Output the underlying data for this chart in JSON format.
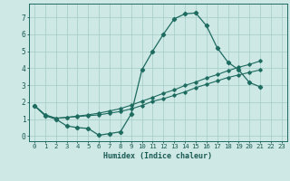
{
  "xlabel": "Humidex (Indice chaleur)",
  "bg_color": "#cde8e5",
  "line_color": "#1e6b60",
  "grid_color": "#aacfcb",
  "xlim": [
    -0.5,
    23.5
  ],
  "ylim": [
    -0.3,
    7.8
  ],
  "xticks": [
    0,
    1,
    2,
    3,
    4,
    5,
    6,
    7,
    8,
    9,
    10,
    11,
    12,
    13,
    14,
    15,
    16,
    17,
    18,
    19,
    20,
    21,
    22,
    23
  ],
  "yticks": [
    0,
    1,
    2,
    3,
    4,
    5,
    6,
    7
  ],
  "line1_x": [
    0,
    1,
    2,
    3,
    4,
    5,
    6,
    7,
    8,
    9,
    10,
    11,
    12,
    13,
    14,
    15,
    16,
    17,
    18,
    19,
    20,
    21
  ],
  "line1_y": [
    1.8,
    1.2,
    1.0,
    0.6,
    0.5,
    0.45,
    0.05,
    0.15,
    0.25,
    1.3,
    3.9,
    5.0,
    6.0,
    6.9,
    7.2,
    7.25,
    6.5,
    5.2,
    4.35,
    3.9,
    3.15,
    2.9
  ],
  "line2_x": [
    0,
    1,
    2,
    3,
    4,
    5,
    6,
    7,
    8,
    9,
    10,
    11,
    12,
    13,
    14,
    15,
    16,
    17,
    18,
    19,
    20,
    21
  ],
  "line2_y": [
    1.8,
    1.25,
    1.05,
    1.1,
    1.15,
    1.2,
    1.25,
    1.35,
    1.45,
    1.6,
    1.8,
    2.05,
    2.2,
    2.4,
    2.6,
    2.85,
    3.05,
    3.25,
    3.45,
    3.6,
    3.75,
    3.9
  ],
  "line3_x": [
    0,
    1,
    2,
    3,
    4,
    5,
    6,
    7,
    8,
    9,
    10,
    11,
    12,
    13,
    14,
    15,
    16,
    17,
    18,
    19,
    20,
    21
  ],
  "line3_y": [
    1.8,
    1.25,
    1.05,
    1.1,
    1.18,
    1.25,
    1.35,
    1.48,
    1.62,
    1.82,
    2.05,
    2.28,
    2.52,
    2.72,
    2.98,
    3.18,
    3.42,
    3.62,
    3.85,
    4.05,
    4.22,
    4.42
  ],
  "xlabel_fontsize": 6.0,
  "tick_fontsize": 5.2,
  "tick_color": "#1a5a52",
  "spine_color": "#1e6b60"
}
